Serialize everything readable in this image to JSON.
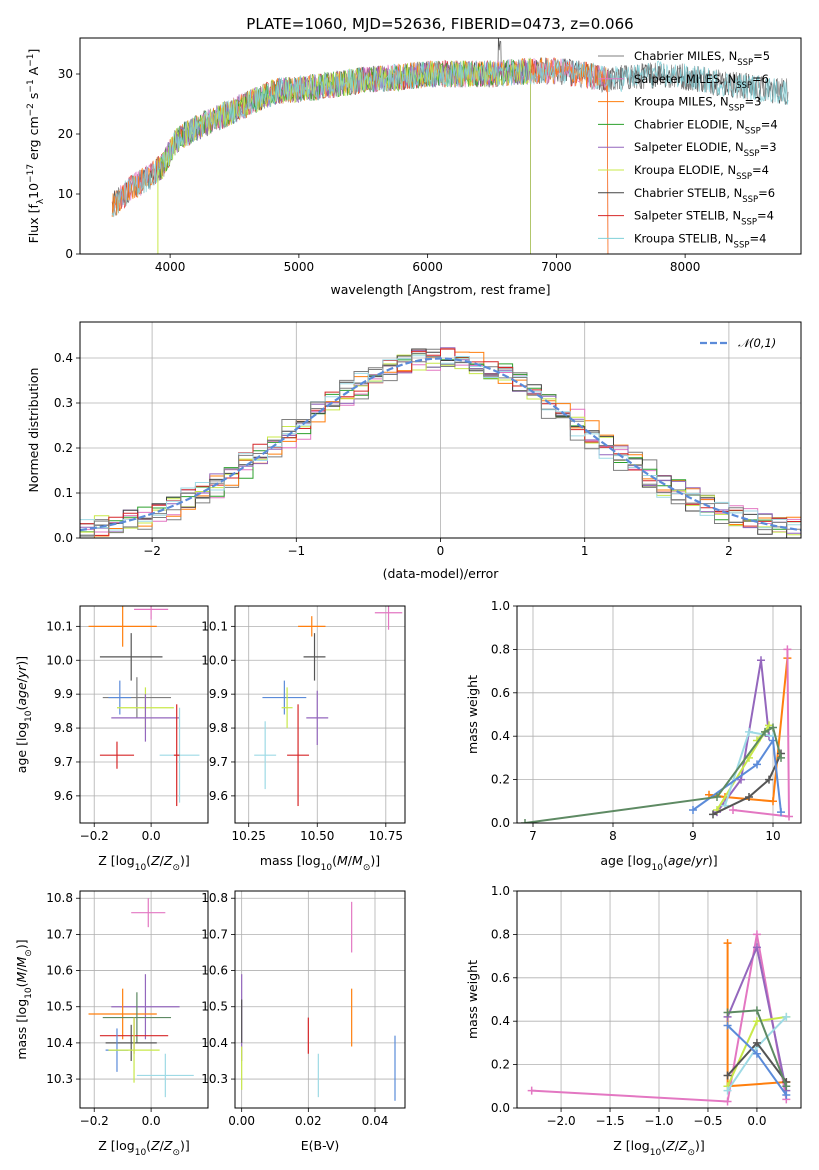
{
  "figure": {
    "title": "PLATE=1060, MJD=52636, FIBERID=0473, z=0.066"
  },
  "colors": {
    "Chabrier MILES": "#7f7f7f",
    "Salpeter MILES": "#e377c2",
    "Kroupa MILES": "#ff7f0e",
    "Chabrier ELODIE": "#2ca02c",
    "Salpeter ELODIE": "#9467bd",
    "Kroupa ELODIE": "#dbdb8d",
    "Chabrier STELIB": "#444444",
    "Salpeter STELIB": "#d62728",
    "Kroupa STELIB": "#9edae5",
    "normal": "#5b8bd9"
  },
  "chart_data": [
    {
      "id": "spectrum",
      "type": "line",
      "title": "PLATE=1060, MJD=52636, FIBERID=0473, z=0.066",
      "xlabel": "wavelength [Angstrom, rest frame]",
      "ylabel": "Flux [f_λ10^-17 erg cm^-2 s^-1 A^-1]",
      "xlim": [
        3300,
        8900
      ],
      "ylim": [
        0,
        36
      ],
      "xticks": [
        4000,
        5000,
        6000,
        7000,
        8000
      ],
      "yticks": [
        0,
        10,
        20,
        30
      ],
      "legend_position": "top-right",
      "grid": false,
      "continuum_points": [
        [
          3550,
          8
        ],
        [
          3700,
          11
        ],
        [
          3850,
          13
        ],
        [
          3950,
          15
        ],
        [
          4050,
          19
        ],
        [
          4200,
          21
        ],
        [
          4400,
          23
        ],
        [
          4600,
          25
        ],
        [
          4800,
          27
        ],
        [
          5000,
          27.5
        ],
        [
          5200,
          28
        ],
        [
          5500,
          29
        ],
        [
          5800,
          29.5
        ],
        [
          6000,
          30
        ],
        [
          6200,
          30
        ],
        [
          6500,
          30
        ],
        [
          6800,
          30.5
        ],
        [
          7000,
          30.5
        ],
        [
          7200,
          30
        ],
        [
          7400,
          29
        ],
        [
          7600,
          29.5
        ],
        [
          7800,
          30
        ],
        [
          8000,
          29.5
        ],
        [
          8300,
          28.5
        ],
        [
          8600,
          27.5
        ],
        [
          8800,
          27
        ]
      ],
      "series": [
        {
          "name": "Chabrier MILES, N_SSP=5",
          "legend": [
            "Chabrier MILES, N",
            "SSP",
            "=5"
          ],
          "range": [
            3550,
            8800
          ]
        },
        {
          "name": "Salpeter MILES, N_SSP=6",
          "legend": [
            "Salpeter MILES, N",
            "SSP",
            "=6"
          ],
          "range": [
            3550,
            7400
          ]
        },
        {
          "name": "Kroupa MILES, N_SSP=3",
          "legend": [
            "Kroupa MILES, N",
            "SSP",
            "=3"
          ],
          "range": [
            3550,
            7400
          ]
        },
        {
          "name": "Chabrier ELODIE, N_SSP=4",
          "legend": [
            "Chabrier ELODIE, N",
            "SSP",
            "=4"
          ],
          "range": [
            3900,
            6800
          ]
        },
        {
          "name": "Salpeter ELODIE, N_SSP=3",
          "legend": [
            "Salpeter ELODIE, N",
            "SSP",
            "=3"
          ],
          "range": [
            3900,
            6800
          ]
        },
        {
          "name": "Kroupa ELODIE, N_SSP=4",
          "legend": [
            "Kroupa ELODIE, N",
            "SSP",
            "=4"
          ],
          "range": [
            3900,
            6800
          ]
        },
        {
          "name": "Chabrier STELIB, N_SSP=6",
          "legend": [
            "Chabrier STELIB, N",
            "SSP",
            "=6"
          ],
          "range": [
            3550,
            8800
          ]
        },
        {
          "name": "Salpeter STELIB, N_SSP=4",
          "legend": [
            "Salpeter STELIB, N",
            "SSP",
            "=4"
          ],
          "range": [
            3550,
            7400
          ]
        },
        {
          "name": "Kroupa STELIB, N_SSP=4",
          "legend": [
            "Kroupa STELIB, N",
            "SSP",
            "=4"
          ],
          "range": [
            3550,
            8800
          ]
        }
      ]
    },
    {
      "id": "residual-hist",
      "type": "line",
      "xlabel": "(data-model)/error",
      "ylabel": "Normed distribution",
      "xlim": [
        -2.5,
        2.5
      ],
      "ylim": [
        0,
        0.48
      ],
      "xticks": [
        -2,
        -1,
        0,
        1,
        2
      ],
      "yticks": [
        0.0,
        0.1,
        0.2,
        0.3,
        0.4
      ],
      "grid": true,
      "legend_position": "top-right",
      "reference_curve": {
        "name": "𝒩(0,1)",
        "mean": 0,
        "sigma": 1
      }
    },
    {
      "id": "age-vs-z",
      "type": "scatter",
      "xlabel": "Z [log10(Z/Z⊙)]",
      "ylabel": "age [log10(age/yr)]",
      "xlim": [
        -0.25,
        0.2
      ],
      "ylim": [
        9.52,
        10.16
      ],
      "xticks": [
        -0.2,
        0.0
      ],
      "yticks": [
        9.6,
        9.7,
        9.8,
        9.9,
        10.0,
        10.1
      ],
      "grid": true,
      "points": [
        {
          "x": 0.0,
          "y": 10.15,
          "xerr": 0.06,
          "yerr": 0.03,
          "color": "#e377c2"
        },
        {
          "x": -0.1,
          "y": 10.1,
          "xerr": 0.12,
          "yerr": 0.06,
          "color": "#ff7f0e"
        },
        {
          "x": -0.07,
          "y": 10.01,
          "xerr": 0.11,
          "yerr": 0.07,
          "color": "#555555"
        },
        {
          "x": -0.05,
          "y": 9.89,
          "xerr": 0.12,
          "yerr": 0.06,
          "color": "#7f7f7f"
        },
        {
          "x": -0.11,
          "y": 9.89,
          "xerr": 0.04,
          "yerr": 0.05,
          "color": "#5b8bd9"
        },
        {
          "x": -0.02,
          "y": 9.86,
          "xerr": 0.1,
          "yerr": 0.06,
          "color": "#c8e84a"
        },
        {
          "x": -0.02,
          "y": 9.83,
          "xerr": 0.12,
          "yerr": 0.07,
          "color": "#9467bd"
        },
        {
          "x": -0.12,
          "y": 9.72,
          "xerr": 0.06,
          "yerr": 0.04,
          "color": "#d62728"
        },
        {
          "x": 0.1,
          "y": 9.72,
          "xerr": 0.07,
          "yerr": 0.14,
          "color": "#9edae5"
        },
        {
          "x": 0.09,
          "y": 9.72,
          "xerr": 0.01,
          "yerr": 0.15,
          "color": "#d62728"
        }
      ]
    },
    {
      "id": "age-vs-mass",
      "type": "scatter",
      "xlabel": "mass [log10(M/M⊙)]",
      "ylabel": "",
      "xlim": [
        10.2,
        10.82
      ],
      "ylim": [
        9.52,
        10.16
      ],
      "xticks": [
        10.25,
        10.5,
        10.75
      ],
      "yticks": [
        9.6,
        9.7,
        9.8,
        9.9,
        10.0,
        10.1
      ],
      "grid": true,
      "points": [
        {
          "x": 10.76,
          "y": 10.14,
          "xerr": 0.05,
          "yerr": 0.05,
          "color": "#e377c2"
        },
        {
          "x": 10.48,
          "y": 10.1,
          "xerr": 0.05,
          "yerr": 0.03,
          "color": "#ff7f0e"
        },
        {
          "x": 10.49,
          "y": 10.01,
          "xerr": 0.04,
          "yerr": 0.07,
          "color": "#555555"
        },
        {
          "x": 10.38,
          "y": 9.89,
          "xerr": 0.08,
          "yerr": 0.05,
          "color": "#5b8bd9"
        },
        {
          "x": 10.39,
          "y": 9.86,
          "xerr": 0.02,
          "yerr": 0.06,
          "color": "#c8e84a"
        },
        {
          "x": 10.5,
          "y": 9.83,
          "xerr": 0.04,
          "yerr": 0.08,
          "color": "#9467bd"
        },
        {
          "x": 10.43,
          "y": 9.72,
          "xerr": 0.04,
          "yerr": 0.15,
          "color": "#d62728"
        },
        {
          "x": 10.31,
          "y": 9.72,
          "xerr": 0.04,
          "yerr": 0.1,
          "color": "#9edae5"
        }
      ]
    },
    {
      "id": "weight-vs-age",
      "type": "line",
      "xlabel": "age [log10(age/yr)]",
      "ylabel": "mass weight",
      "xlim": [
        6.8,
        10.35
      ],
      "ylim": [
        0,
        1.0
      ],
      "xticks": [
        7,
        8,
        9,
        10
      ],
      "yticks": [
        0.0,
        0.2,
        0.4,
        0.6,
        0.8,
        1.0
      ],
      "grid": true,
      "series": [
        {
          "color": "#ff7f0e",
          "points": [
            [
              9.2,
              0.13
            ],
            [
              9.4,
              0.12
            ],
            [
              10.0,
              0.1
            ],
            [
              10.18,
              0.76
            ]
          ]
        },
        {
          "color": "#e377c2",
          "points": [
            [
              9.5,
              0.06
            ],
            [
              10.2,
              0.03
            ],
            [
              10.18,
              0.8
            ]
          ]
        },
        {
          "color": "#9467bd",
          "points": [
            [
              9.3,
              0.05
            ],
            [
              9.6,
              0.2
            ],
            [
              9.85,
              0.75
            ],
            [
              9.95,
              0.4
            ]
          ]
        },
        {
          "color": "#c8e84a",
          "points": [
            [
              9.3,
              0.06
            ],
            [
              9.7,
              0.3
            ],
            [
              9.95,
              0.45
            ],
            [
              9.8,
              0.38
            ]
          ]
        },
        {
          "color": "#9edae5",
          "points": [
            [
              9.4,
              0.08
            ],
            [
              9.7,
              0.42
            ],
            [
              10.0,
              0.4
            ]
          ]
        },
        {
          "color": "#555555",
          "points": [
            [
              9.25,
              0.04
            ],
            [
              9.7,
              0.12
            ],
            [
              9.95,
              0.2
            ],
            [
              10.1,
              0.32
            ]
          ]
        },
        {
          "color": "#5b8bd9",
          "points": [
            [
              9.0,
              0.06
            ],
            [
              9.8,
              0.27
            ],
            [
              10.0,
              0.38
            ],
            [
              10.1,
              0.05
            ]
          ]
        },
        {
          "color": "#5e8a63",
          "points": [
            [
              6.9,
              0.0
            ],
            [
              9.3,
              0.12
            ],
            [
              9.9,
              0.42
            ],
            [
              10.0,
              0.44
            ],
            [
              10.1,
              0.3
            ]
          ]
        }
      ]
    },
    {
      "id": "mass-vs-z",
      "type": "scatter",
      "xlabel": "Z [log10(Z/Z⊙)]",
      "ylabel": "mass [log10(M/M⊙)]",
      "xlim": [
        -0.25,
        0.2
      ],
      "ylim": [
        10.22,
        10.82
      ],
      "xticks": [
        -0.2,
        0.0
      ],
      "yticks": [
        10.3,
        10.4,
        10.5,
        10.6,
        10.7,
        10.8
      ],
      "grid": true,
      "points": [
        {
          "x": -0.01,
          "y": 10.76,
          "xerr": 0.06,
          "yerr": 0.04,
          "color": "#e377c2"
        },
        {
          "x": -0.02,
          "y": 10.5,
          "xerr": 0.12,
          "yerr": 0.09,
          "color": "#9467bd"
        },
        {
          "x": -0.1,
          "y": 10.48,
          "xerr": 0.12,
          "yerr": 0.07,
          "color": "#ff7f0e"
        },
        {
          "x": -0.05,
          "y": 10.47,
          "xerr": 0.12,
          "yerr": 0.07,
          "color": "#5e8a63"
        },
        {
          "x": -0.06,
          "y": 10.42,
          "xerr": 0.12,
          "yerr": 0.05,
          "color": "#d62728"
        },
        {
          "x": -0.07,
          "y": 10.4,
          "xerr": 0.09,
          "yerr": 0.05,
          "color": "#555555"
        },
        {
          "x": -0.12,
          "y": 10.38,
          "xerr": 0.04,
          "yerr": 0.06,
          "color": "#5b8bd9"
        },
        {
          "x": -0.06,
          "y": 10.38,
          "xerr": 0.09,
          "yerr": 0.09,
          "color": "#c8e84a"
        },
        {
          "x": 0.05,
          "y": 10.31,
          "xerr": 0.1,
          "yerr": 0.06,
          "color": "#9edae5"
        }
      ]
    },
    {
      "id": "mass-vs-ebv",
      "type": "scatter",
      "xlabel": "E(B-V)",
      "ylabel": "",
      "xlim": [
        -0.002,
        0.049
      ],
      "ylim": [
        10.22,
        10.82
      ],
      "xticks": [
        0.0,
        0.02,
        0.04
      ],
      "yticks": [
        10.3,
        10.4,
        10.5,
        10.6,
        10.7,
        10.8
      ],
      "grid": true,
      "points": [
        {
          "x": 0.0,
          "y": 10.47,
          "xerr": 0,
          "yerr": 0.12,
          "color": "#9467bd"
        },
        {
          "x": 0.0,
          "y": 10.46,
          "xerr": 0,
          "yerr": 0.06,
          "color": "#555555"
        },
        {
          "x": 0.0,
          "y": 10.33,
          "xerr": 0,
          "yerr": 0.06,
          "color": "#c8e84a"
        },
        {
          "x": 0.02,
          "y": 10.42,
          "xerr": 0,
          "yerr": 0.05,
          "color": "#d62728"
        },
        {
          "x": 0.023,
          "y": 10.31,
          "xerr": 0,
          "yerr": 0.06,
          "color": "#9edae5"
        },
        {
          "x": 0.033,
          "y": 10.72,
          "xerr": 0,
          "yerr": 0.07,
          "color": "#e377c2"
        },
        {
          "x": 0.033,
          "y": 10.47,
          "xerr": 0,
          "yerr": 0.08,
          "color": "#ff7f0e"
        },
        {
          "x": 0.046,
          "y": 10.33,
          "xerr": 0,
          "yerr": 0.09,
          "color": "#5b8bd9"
        }
      ]
    },
    {
      "id": "weight-vs-z",
      "type": "line",
      "xlabel": "Z [log10(Z/Z⊙)]",
      "ylabel": "mass weight",
      "xlim": [
        -2.45,
        0.45
      ],
      "ylim": [
        0,
        1.0
      ],
      "xticks": [
        -2.0,
        -1.5,
        -1.0,
        -0.5,
        0.0
      ],
      "yticks": [
        0.0,
        0.2,
        0.4,
        0.6,
        0.8,
        1.0
      ],
      "grid": true,
      "series": [
        {
          "color": "#e377c2",
          "points": [
            [
              -2.3,
              0.08
            ],
            [
              -0.3,
              0.03
            ],
            [
              0.0,
              0.8
            ],
            [
              0.3,
              0.04
            ]
          ]
        },
        {
          "color": "#ff7f0e",
          "points": [
            [
              -0.3,
              0.76
            ],
            [
              -0.3,
              0.1
            ],
            [
              0.3,
              0.12
            ]
          ]
        },
        {
          "color": "#9467bd",
          "points": [
            [
              -0.3,
              0.42
            ],
            [
              0.0,
              0.74
            ],
            [
              0.3,
              0.08
            ]
          ]
        },
        {
          "color": "#c8e84a",
          "points": [
            [
              -0.3,
              0.1
            ],
            [
              0.0,
              0.4
            ],
            [
              0.3,
              0.42
            ]
          ]
        },
        {
          "color": "#9edae5",
          "points": [
            [
              -0.3,
              0.08
            ],
            [
              0.0,
              0.28
            ],
            [
              0.3,
              0.42
            ]
          ]
        },
        {
          "color": "#555555",
          "points": [
            [
              -0.3,
              0.15
            ],
            [
              0.0,
              0.3
            ],
            [
              0.3,
              0.12
            ]
          ]
        },
        {
          "color": "#5b8bd9",
          "points": [
            [
              -0.3,
              0.38
            ],
            [
              0.0,
              0.25
            ],
            [
              0.3,
              0.06
            ]
          ]
        },
        {
          "color": "#5e8a63",
          "points": [
            [
              -0.3,
              0.44
            ],
            [
              0.0,
              0.45
            ],
            [
              0.3,
              0.1
            ]
          ]
        }
      ]
    }
  ]
}
